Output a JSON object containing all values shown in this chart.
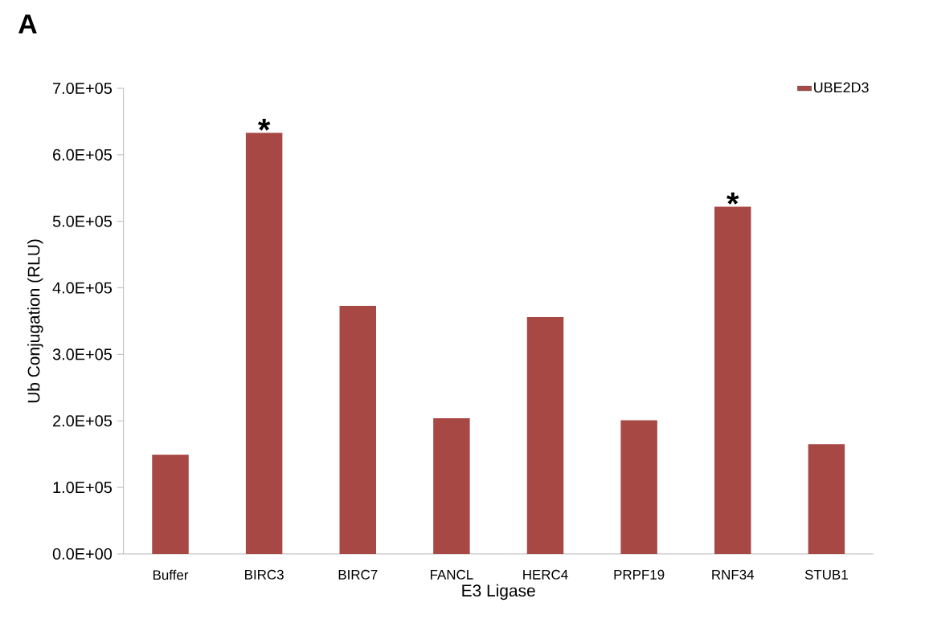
{
  "chart_data": {
    "type": "bar",
    "xlabel": "E3 Ligase",
    "ylabel": "Ub Conjugation (RLU)",
    "categories": [
      "Buffer",
      "BIRC3",
      "BIRC7",
      "FANCL",
      "HERC4",
      "PRPF19",
      "RNF34",
      "STUB1"
    ],
    "series": [
      {
        "name": "UBE2D3",
        "color": "#a84845",
        "values": [
          149000,
          633000,
          373000,
          204000,
          356000,
          201000,
          522000,
          165000
        ]
      }
    ],
    "ylim": [
      0,
      700000
    ],
    "yticks": [
      {
        "value": 0,
        "label": "0.0E+00"
      },
      {
        "value": 100000,
        "label": "1.0E+05"
      },
      {
        "value": 200000,
        "label": "2.0E+05"
      },
      {
        "value": 300000,
        "label": "3.0E+05"
      },
      {
        "value": 400000,
        "label": "4.0E+05"
      },
      {
        "value": 500000,
        "label": "5.0E+05"
      },
      {
        "value": 600000,
        "label": "6.0E+05"
      },
      {
        "value": 700000,
        "label": "7.0E+05"
      }
    ],
    "legend": "top right",
    "grid": false,
    "annotations": [
      "A",
      {
        "text": "*",
        "x": "BIRC3",
        "y": 633000
      },
      {
        "text": "*",
        "x": "RNF34",
        "y": 522000
      }
    ]
  }
}
